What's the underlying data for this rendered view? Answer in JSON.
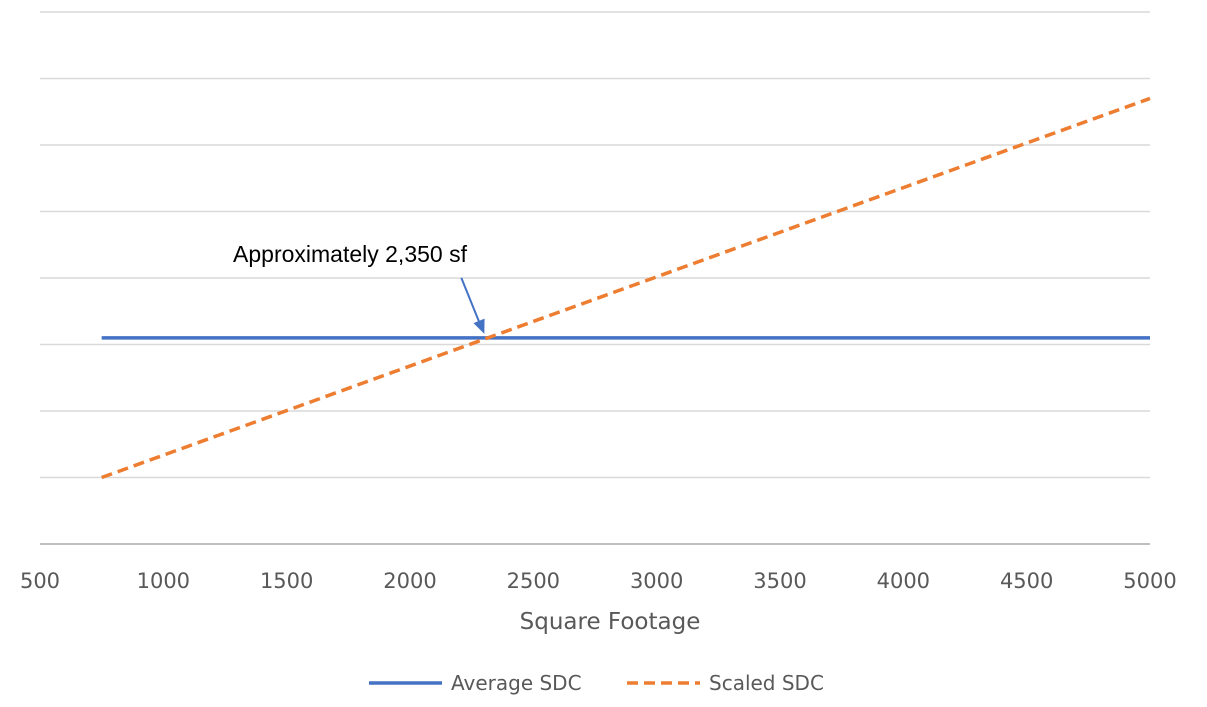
{
  "chart_data": {
    "type": "line",
    "title": "",
    "xlabel": "Square Footage",
    "ylabel": "",
    "xlim": [
      500,
      5000
    ],
    "xticks": [
      500,
      1000,
      1500,
      2000,
      2500,
      3000,
      3500,
      4000,
      4500,
      5000
    ],
    "ylim": [
      0,
      8
    ],
    "y_gridlines": [
      1,
      2,
      3,
      4,
      5,
      6,
      7,
      8
    ],
    "grid": "horizontal",
    "legend_position": "bottom",
    "series": [
      {
        "name": "Average SDC",
        "style": "solid",
        "color": "#4472C4",
        "x": [
          750,
          5000
        ],
        "y": [
          3.1,
          3.1
        ]
      },
      {
        "name": "Scaled SDC",
        "style": "dashed",
        "color": "#ED7D31",
        "x": [
          750,
          5000
        ],
        "y": [
          1,
          6.7
        ]
      }
    ],
    "annotations": [
      {
        "text": "Approximately 2,350 sf",
        "points_to": {
          "x": 2350,
          "y": 3.1
        },
        "arrow_color": "#4472C4"
      }
    ]
  }
}
